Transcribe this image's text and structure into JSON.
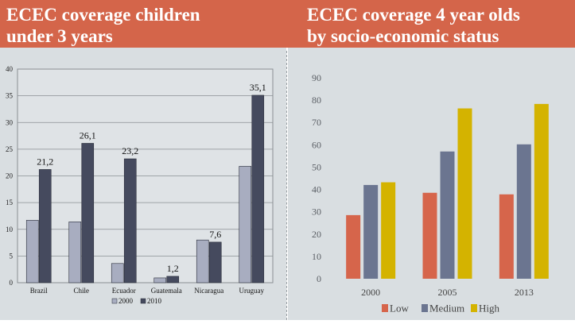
{
  "header": {
    "left_title": "ECEC coverage children\nunder 3 years",
    "right_title": "ECEC coverage 4 year olds\nby socio-economic status"
  },
  "chart_data": [
    {
      "type": "bar",
      "categories": [
        "Brazil",
        "Chile",
        "Ecuador",
        "Guatemala",
        "Nicaragua",
        "Uruguay"
      ],
      "series": [
        {
          "name": "2000",
          "values": [
            11.7,
            11.4,
            3.6,
            0.9,
            8.0,
            21.8
          ],
          "color": "#a8adc0"
        },
        {
          "name": "2010",
          "values": [
            21.2,
            26.1,
            23.2,
            1.2,
            7.6,
            35.1
          ],
          "color": "#454a5e"
        }
      ],
      "data_labels": [
        "21,2",
        "26,1",
        "23,2",
        "1,2",
        "7,6",
        "35,1"
      ],
      "y_ticks": [
        "0",
        "5",
        "10",
        "15",
        "20",
        "25",
        "30",
        "35",
        "40"
      ],
      "ylim": [
        0,
        40
      ],
      "grid": true,
      "legend_position": "bottom"
    },
    {
      "type": "bar",
      "categories": [
        "2000",
        "2005",
        "2013"
      ],
      "series": [
        {
          "name": "Low",
          "values": [
            28.5,
            38.5,
            37.8
          ],
          "color": "#d6654b"
        },
        {
          "name": "Medium",
          "values": [
            42,
            57,
            60.2
          ],
          "color": "#6b7590"
        },
        {
          "name": "High",
          "values": [
            43.2,
            76.3,
            78.3
          ],
          "color": "#d4b300"
        }
      ],
      "y_ticks": [
        "0",
        "10",
        "20",
        "30",
        "40",
        "50",
        "60",
        "70",
        "80",
        "90"
      ],
      "ylim": [
        0,
        90
      ],
      "grid": false,
      "legend_position": "bottom"
    }
  ]
}
